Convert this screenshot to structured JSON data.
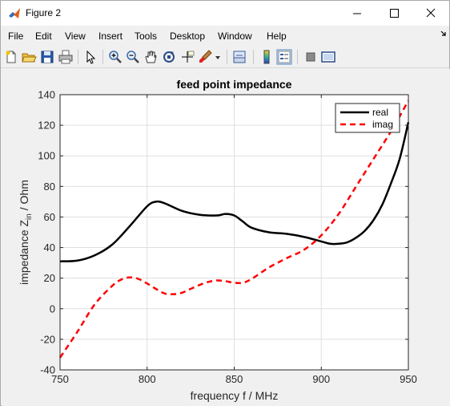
{
  "window": {
    "title": "Figure 2"
  },
  "menu": {
    "items": [
      "File",
      "Edit",
      "View",
      "Insert",
      "Tools",
      "Desktop",
      "Window",
      "Help"
    ],
    "overflow_icon": "arrow-icon"
  },
  "toolbar": {
    "icons": [
      "new-figure-icon",
      "open-file-icon",
      "save-icon",
      "print-icon",
      "edit-plot-icon",
      "zoom-in-icon",
      "zoom-out-icon",
      "pan-icon",
      "rotate-3d-icon",
      "data-cursor-icon",
      "brush-icon",
      "link-plot-icon",
      "colorbar-icon",
      "legend-icon",
      "hide-plot-tools-icon",
      "show-plot-tools-icon"
    ]
  },
  "chart_data": {
    "type": "line",
    "title": "feed point impedance",
    "xlabel": "frequency f / MHz",
    "ylabel_main": "impedance Z",
    "ylabel_sub": "in",
    "ylabel_unit": " / Ohm",
    "xlim": [
      750,
      950
    ],
    "ylim": [
      -40,
      140
    ],
    "xticks": [
      750,
      800,
      850,
      900,
      950
    ],
    "yticks": [
      -40,
      -20,
      0,
      20,
      40,
      60,
      80,
      100,
      120,
      140
    ],
    "grid": true,
    "legend": "top-right",
    "series": [
      {
        "name": "real",
        "color": "#000000",
        "style": "solid",
        "x": [
          750,
          760,
          770,
          780,
          790,
          800,
          805,
          810,
          820,
          830,
          840,
          845,
          850,
          855,
          860,
          870,
          880,
          890,
          900,
          905,
          910,
          915,
          920,
          925,
          930,
          935,
          940,
          945,
          950
        ],
        "y": [
          31,
          31.5,
          35,
          42,
          54,
          67,
          70,
          69,
          64,
          61.5,
          61,
          62,
          61,
          57,
          53,
          50,
          49,
          47,
          44,
          42.5,
          42.5,
          43.5,
          46.5,
          51,
          58,
          68,
          82,
          98,
          122
        ]
      },
      {
        "name": "imag",
        "color": "#ff0000",
        "style": "dashed",
        "x": [
          750,
          760,
          770,
          780,
          785,
          790,
          795,
          800,
          805,
          810,
          815,
          820,
          825,
          830,
          835,
          840,
          845,
          850,
          855,
          860,
          870,
          880,
          890,
          900,
          910,
          920,
          930,
          940,
          950
        ],
        "y": [
          -32,
          -15,
          3,
          15,
          19,
          20.5,
          19.5,
          16.5,
          13,
          10,
          9.5,
          10.5,
          13,
          15.5,
          17.5,
          18.5,
          18,
          17,
          17,
          19.5,
          27,
          33,
          38.5,
          48,
          62,
          80,
          98,
          116,
          136
        ]
      }
    ]
  }
}
